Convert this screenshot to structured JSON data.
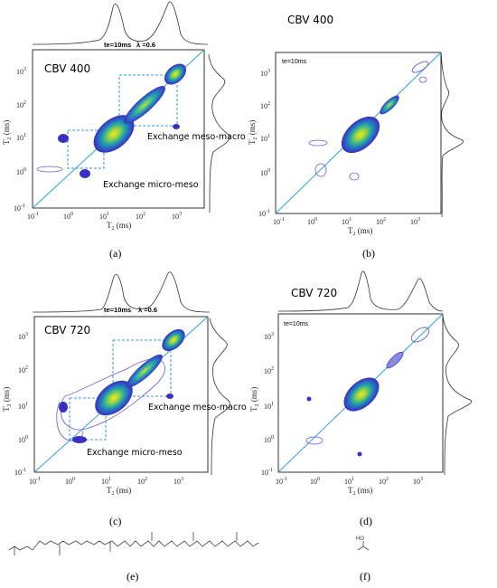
{
  "panels": {
    "a": {
      "caption": "(a)",
      "title": "CBV 400",
      "te": "te=10ms",
      "lambda": "λ =0.6",
      "ann1": "Exchange meso-macro",
      "ann2": "Exchange micro-meso",
      "xlabel": "T",
      "xlabel_sub": "2",
      "xlabel_unit": " (ms)",
      "ylabel": "T",
      "ylabel_sub": "2",
      "ylabel_unit": " (ms)"
    },
    "b": {
      "caption": "(b)",
      "title": "CBV 400",
      "te": "te=10ms",
      "xlabel": "T",
      "xlabel_sub": "2",
      "xlabel_unit": " (ms)",
      "ylabel": "T",
      "ylabel_sub": "2",
      "ylabel_unit": " (ms)"
    },
    "c": {
      "caption": "(c)",
      "title": "CBV 720",
      "te": "te=10ms",
      "lambda": "λ =0.6",
      "ann1": "Exchange meso-macro",
      "ann2": "Exchange micro-meso",
      "xlabel": "T",
      "xlabel_sub": "2",
      "xlabel_unit": " (ms)",
      "ylabel": "T",
      "ylabel_sub": "2",
      "ylabel_unit": " (ms)"
    },
    "d": {
      "caption": "(d)",
      "title": "CBV 720",
      "te": "te=10ms",
      "xlabel": "T",
      "xlabel_sub": "2",
      "xlabel_unit": " (ms)",
      "ylabel": "T",
      "ylabel_sub": "2",
      "ylabel_unit": " (ms)"
    },
    "e": {
      "caption": "(e)"
    },
    "f": {
      "caption": "(f)",
      "ho": "HO"
    }
  },
  "ticks": {
    "x": [
      {
        "base": "10",
        "exp": "-1"
      },
      {
        "base": "10",
        "exp": "0"
      },
      {
        "base": "10",
        "exp": "1"
      },
      {
        "base": "10",
        "exp": "2"
      },
      {
        "base": "10",
        "exp": "3"
      }
    ],
    "y": [
      {
        "base": "10",
        "exp": "-1"
      },
      {
        "base": "10",
        "exp": "0"
      },
      {
        "base": "10",
        "exp": "1"
      },
      {
        "base": "10",
        "exp": "2"
      },
      {
        "base": "10",
        "exp": "3"
      }
    ]
  },
  "colors": {
    "diagonal": "#2aa3d8",
    "box": "#2f9ed6",
    "contour": "#3b3ccf",
    "peak": "#f2e61a",
    "mid": "#23b2a0"
  }
}
